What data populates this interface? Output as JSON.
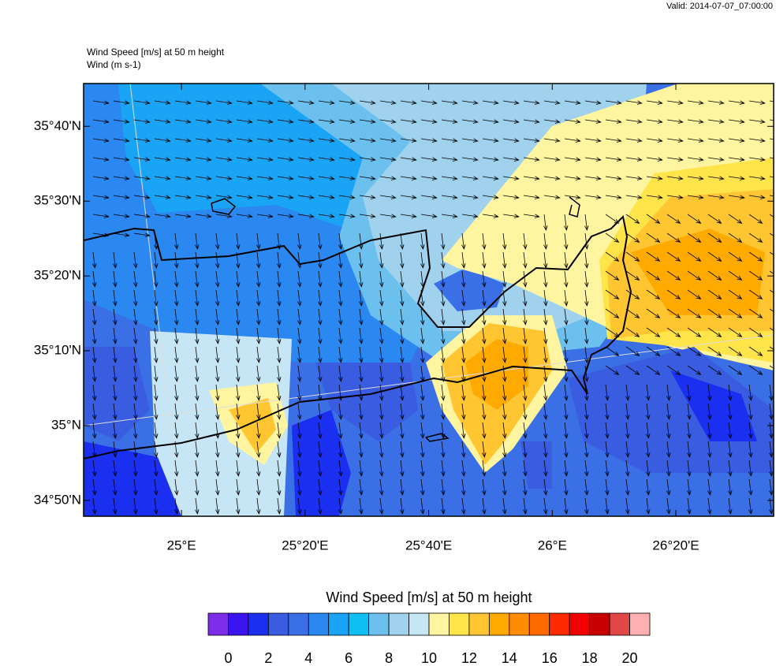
{
  "header": {
    "valid": "Valid: 2014-07-07_07:00:00",
    "field": "Wind Speed [m/s] at 50 m height",
    "vector": "Wind   (m s-1)"
  },
  "map": {
    "lat_range": [
      34.798,
      35.762
    ],
    "lon_range": [
      24.736,
      26.597
    ],
    "lat_ticks": [
      {
        "value": 35.6667,
        "label": "35°40'N"
      },
      {
        "value": 35.5,
        "label": "35°30'N"
      },
      {
        "value": 35.3333,
        "label": "35°20'N"
      },
      {
        "value": 35.1667,
        "label": "35°10'N"
      },
      {
        "value": 35.0,
        "label": "35°N"
      },
      {
        "value": 34.8333,
        "label": "34°50'N"
      }
    ],
    "lon_ticks": [
      {
        "value": 25.0,
        "label": "25°E"
      },
      {
        "value": 25.3333,
        "label": "25°20'E"
      },
      {
        "value": 25.6667,
        "label": "25°40'E"
      },
      {
        "value": 26.0,
        "label": "26°E"
      },
      {
        "value": 26.3333,
        "label": "26°20'E"
      }
    ]
  },
  "colorbar": {
    "title": "Wind Speed [m/s] at 50 m height",
    "range": [
      -1,
      21
    ],
    "ticks": [
      0,
      2,
      4,
      6,
      8,
      10,
      12,
      14,
      16,
      18,
      20
    ],
    "colors": [
      "#7b2de8",
      "#3a14f0",
      "#1a2ff0",
      "#3a5ce0",
      "#3a6fe6",
      "#2a88f0",
      "#1aa4f5",
      "#0fc0f5",
      "#6cc0ee",
      "#a0d2ee",
      "#c6e6f5",
      "#fff5a0",
      "#ffe44a",
      "#ffc632",
      "#ffaa00",
      "#ff8c00",
      "#ff6a00",
      "#ff2a00",
      "#f00000",
      "#c80000",
      "#e04848",
      "#ffb0b0"
    ]
  }
}
